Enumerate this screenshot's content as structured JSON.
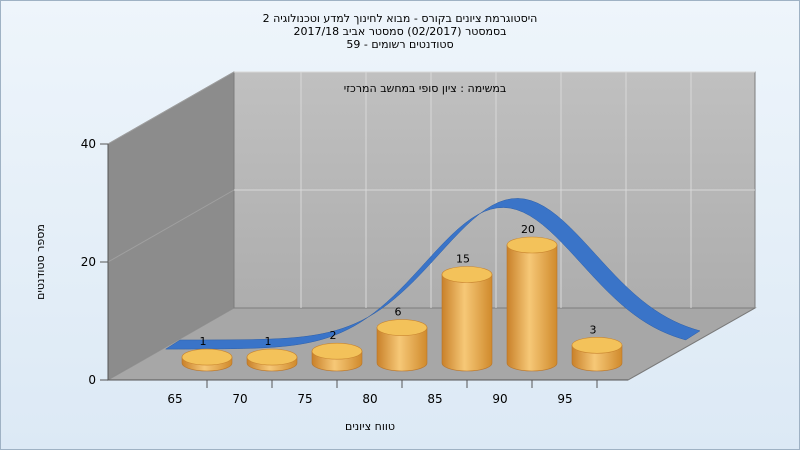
{
  "titles": [
    "היסטוגרמת ציונים בקורס - מבוא לחינוך למדע וטכנולוגיה 2",
    "בסמסטר (02/2017) סמסטר אביב 2017/18",
    "סטודנטים רשומים - 59"
  ],
  "chart_data": {
    "type": "bar",
    "subtitle": "במשימה : ציון סופי במחשב המרכזי",
    "xlabel": "טווח ציונים",
    "ylabel": "מספר סטודנטים",
    "categories": [
      "65",
      "70",
      "75",
      "80",
      "85",
      "90",
      "95"
    ],
    "values": [
      1,
      1,
      2,
      6,
      15,
      20,
      3
    ],
    "y_ticks": [
      "0",
      "20",
      "40"
    ],
    "ylim": [
      0,
      40
    ],
    "grid": true,
    "curve": "normal-distribution",
    "colors": {
      "bar": "#e8a23a",
      "bar_top": "#f3c25a",
      "curve": "#3a74c8",
      "back_wall": "#b7b7b7",
      "left_wall": "#8a8a8a",
      "floor": "#a9a9a9"
    }
  }
}
